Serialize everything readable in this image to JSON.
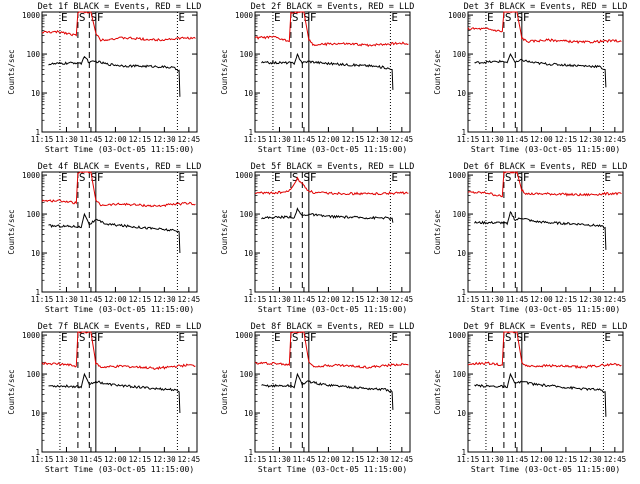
{
  "colors": {
    "events": "#000000",
    "lld": "#e00000",
    "axis": "#000000",
    "background": "#ffffff"
  },
  "shared": {
    "xlabel": "Start Time (03-Oct-05 11:15:00)",
    "ylabel": "Counts/sec",
    "x_ticks": [
      "11:15",
      "11:30",
      "11:45",
      "12:00",
      "12:15",
      "12:30",
      "12:45"
    ],
    "y_ticks": [
      "1",
      "10",
      "100",
      "1000"
    ],
    "markers": [
      "E",
      "S",
      "F",
      "E"
    ]
  },
  "chart_data": [
    {
      "type": "line",
      "title": "Det 1f BLACK = Events, RED = LLD",
      "xlabel": "Start Time (03-Oct-05 11:15:00)",
      "ylabel": "Counts/sec",
      "x_unit": "minutes after 11:15",
      "xlim": [
        0,
        95
      ],
      "ylim": [
        1,
        1200
      ],
      "yscale": "log",
      "series": [
        {
          "name": "LLD",
          "color": "red",
          "x": [
            0,
            12,
            21,
            22,
            24,
            30,
            33,
            36,
            50,
            70,
            90,
            94
          ],
          "y": [
            360,
            370,
            300,
            1200,
            1200,
            1200,
            340,
            230,
            260,
            230,
            260,
            250
          ]
        },
        {
          "name": "Events",
          "color": "black",
          "x": [
            4,
            22,
            24,
            26,
            29,
            33,
            40,
            50,
            70,
            80,
            84,
            84.5
          ],
          "y": [
            55,
            60,
            55,
            90,
            60,
            65,
            55,
            50,
            48,
            45,
            38,
            8
          ]
        }
      ],
      "markers": [
        {
          "label": "E",
          "x": 11,
          "style": "dotted"
        },
        {
          "label": "S",
          "x": 22,
          "style": "dashed"
        },
        {
          "label": "S",
          "x": 29,
          "style": "dashed"
        },
        {
          "label": "F",
          "x": 33,
          "style": "solid"
        },
        {
          "label": "E",
          "x": 83,
          "style": "dotted"
        }
      ]
    },
    {
      "type": "line",
      "title": "Det 2f BLACK = Events, RED = LLD",
      "xlabel": "Start Time (03-Oct-05 11:15:00)",
      "ylabel": "Counts/sec",
      "x_unit": "minutes after 11:15",
      "xlim": [
        0,
        95
      ],
      "ylim": [
        1,
        1200
      ],
      "yscale": "log",
      "series": [
        {
          "name": "LLD",
          "color": "red",
          "x": [
            0,
            12,
            21,
            22,
            24,
            30,
            33,
            36,
            50,
            70,
            90,
            94
          ],
          "y": [
            260,
            270,
            210,
            1200,
            1200,
            1200,
            230,
            170,
            185,
            170,
            190,
            180
          ]
        },
        {
          "name": "Events",
          "color": "black",
          "x": [
            4,
            22,
            24,
            26,
            29,
            33,
            40,
            50,
            70,
            80,
            84,
            84.5
          ],
          "y": [
            60,
            60,
            55,
            95,
            60,
            65,
            60,
            55,
            50,
            45,
            40,
            12
          ]
        }
      ],
      "markers": [
        {
          "label": "E",
          "x": 11,
          "style": "dotted"
        },
        {
          "label": "S",
          "x": 22,
          "style": "dashed"
        },
        {
          "label": "S",
          "x": 29,
          "style": "dashed"
        },
        {
          "label": "F",
          "x": 33,
          "style": "solid"
        },
        {
          "label": "E",
          "x": 83,
          "style": "dotted"
        }
      ]
    },
    {
      "type": "line",
      "title": "Det 3f BLACK = Events, RED = LLD",
      "xlabel": "Start Time (03-Oct-05 11:15:00)",
      "ylabel": "Counts/sec",
      "x_unit": "minutes after 11:15",
      "xlim": [
        0,
        95
      ],
      "ylim": [
        1,
        1200
      ],
      "yscale": "log",
      "series": [
        {
          "name": "LLD",
          "color": "red",
          "x": [
            0,
            12,
            21,
            22,
            24,
            30,
            33,
            36,
            50,
            70,
            90,
            94
          ],
          "y": [
            450,
            440,
            380,
            1200,
            1200,
            1200,
            260,
            210,
            230,
            200,
            220,
            210
          ]
        },
        {
          "name": "Events",
          "color": "black",
          "x": [
            4,
            22,
            24,
            26,
            29,
            33,
            40,
            50,
            70,
            80,
            84,
            84.5
          ],
          "y": [
            60,
            65,
            60,
            100,
            60,
            70,
            60,
            55,
            50,
            48,
            40,
            14
          ]
        }
      ],
      "markers": [
        {
          "label": "E",
          "x": 11,
          "style": "dotted"
        },
        {
          "label": "S",
          "x": 22,
          "style": "dashed"
        },
        {
          "label": "S",
          "x": 29,
          "style": "dashed"
        },
        {
          "label": "F",
          "x": 33,
          "style": "solid"
        },
        {
          "label": "E",
          "x": 83,
          "style": "dotted"
        }
      ]
    },
    {
      "type": "line",
      "title": "Det 4f BLACK = Events, RED = LLD",
      "xlabel": "Start Time (03-Oct-05 11:15:00)",
      "ylabel": "Counts/sec",
      "x_unit": "minutes after 11:15",
      "xlim": [
        0,
        95
      ],
      "ylim": [
        1,
        1200
      ],
      "yscale": "log",
      "series": [
        {
          "name": "LLD",
          "color": "red",
          "x": [
            0,
            12,
            21,
            22,
            24,
            30,
            33,
            36,
            50,
            70,
            90,
            94
          ],
          "y": [
            220,
            220,
            190,
            1200,
            1200,
            1200,
            220,
            170,
            180,
            160,
            190,
            180
          ]
        },
        {
          "name": "Events",
          "color": "black",
          "x": [
            4,
            22,
            24,
            26,
            29,
            33,
            40,
            50,
            70,
            80,
            84,
            84.5
          ],
          "y": [
            50,
            48,
            45,
            100,
            55,
            70,
            55,
            50,
            42,
            38,
            35,
            10
          ]
        }
      ],
      "markers": [
        {
          "label": "E",
          "x": 11,
          "style": "dotted"
        },
        {
          "label": "S",
          "x": 22,
          "style": "dashed"
        },
        {
          "label": "S",
          "x": 29,
          "style": "dashed"
        },
        {
          "label": "F",
          "x": 33,
          "style": "solid"
        },
        {
          "label": "E",
          "x": 83,
          "style": "dotted"
        }
      ]
    },
    {
      "type": "line",
      "title": "Det 5f BLACK = Events, RED = LLD",
      "xlabel": "Start Time (03-Oct-05 11:15:00)",
      "ylabel": "Counts/sec",
      "x_unit": "minutes after 11:15",
      "xlim": [
        0,
        95
      ],
      "ylim": [
        1,
        1200
      ],
      "yscale": "log",
      "series": [
        {
          "name": "LLD",
          "color": "red",
          "x": [
            0,
            12,
            20,
            23,
            26,
            29,
            32,
            36,
            50,
            70,
            90,
            94
          ],
          "y": [
            350,
            350,
            370,
            500,
            800,
            600,
            420,
            350,
            340,
            330,
            350,
            340
          ]
        },
        {
          "name": "Events",
          "color": "black",
          "x": [
            4,
            22,
            24,
            26,
            29,
            33,
            40,
            50,
            70,
            80,
            84,
            84.5
          ],
          "y": [
            80,
            85,
            80,
            130,
            90,
            100,
            90,
            85,
            80,
            80,
            75,
            60
          ]
        }
      ],
      "markers": [
        {
          "label": "E",
          "x": 11,
          "style": "dotted"
        },
        {
          "label": "S",
          "x": 22,
          "style": "dashed"
        },
        {
          "label": "S",
          "x": 29,
          "style": "dashed"
        },
        {
          "label": "F",
          "x": 33,
          "style": "solid"
        },
        {
          "label": "E",
          "x": 83,
          "style": "dotted"
        }
      ]
    },
    {
      "type": "line",
      "title": "Det 6f BLACK = Events, RED = LLD",
      "xlabel": "Start Time (03-Oct-05 11:15:00)",
      "ylabel": "Counts/sec",
      "x_unit": "minutes after 11:15",
      "xlim": [
        0,
        95
      ],
      "ylim": [
        1,
        1200
      ],
      "yscale": "log",
      "series": [
        {
          "name": "LLD",
          "color": "red",
          "x": [
            0,
            12,
            21,
            22,
            24,
            30,
            33,
            36,
            50,
            70,
            90,
            94
          ],
          "y": [
            360,
            350,
            280,
            1200,
            1200,
            1200,
            400,
            330,
            330,
            310,
            340,
            330
          ]
        },
        {
          "name": "Events",
          "color": "black",
          "x": [
            4,
            22,
            24,
            26,
            29,
            33,
            40,
            50,
            70,
            80,
            84,
            84.5
          ],
          "y": [
            60,
            60,
            55,
            110,
            70,
            80,
            65,
            60,
            55,
            50,
            45,
            12
          ]
        }
      ],
      "markers": [
        {
          "label": "E",
          "x": 11,
          "style": "dotted"
        },
        {
          "label": "S",
          "x": 22,
          "style": "dashed"
        },
        {
          "label": "S",
          "x": 29,
          "style": "dashed"
        },
        {
          "label": "F",
          "x": 33,
          "style": "solid"
        },
        {
          "label": "E",
          "x": 83,
          "style": "dotted"
        }
      ]
    },
    {
      "type": "line",
      "title": "Det 7f BLACK = Events, RED = LLD",
      "xlabel": "Start Time (03-Oct-05 11:15:00)",
      "ylabel": "Counts/sec",
      "x_unit": "minutes after 11:15",
      "xlim": [
        0,
        95
      ],
      "ylim": [
        1,
        1200
      ],
      "yscale": "log",
      "series": [
        {
          "name": "LLD",
          "color": "red",
          "x": [
            0,
            12,
            21,
            22,
            24,
            30,
            33,
            36,
            50,
            70,
            90,
            94
          ],
          "y": [
            190,
            180,
            160,
            1200,
            1200,
            1200,
            190,
            150,
            160,
            140,
            170,
            160
          ]
        },
        {
          "name": "Events",
          "color": "black",
          "x": [
            4,
            22,
            24,
            26,
            29,
            33,
            40,
            50,
            70,
            80,
            84,
            84.5
          ],
          "y": [
            50,
            48,
            45,
            100,
            55,
            65,
            55,
            50,
            42,
            40,
            35,
            10
          ]
        }
      ],
      "markers": [
        {
          "label": "E",
          "x": 11,
          "style": "dotted"
        },
        {
          "label": "S",
          "x": 22,
          "style": "dashed"
        },
        {
          "label": "S",
          "x": 29,
          "style": "dashed"
        },
        {
          "label": "F",
          "x": 33,
          "style": "solid"
        },
        {
          "label": "E",
          "x": 83,
          "style": "dotted"
        }
      ]
    },
    {
      "type": "line",
      "title": "Det 8f BLACK = Events, RED = LLD",
      "xlabel": "Start Time (03-Oct-05 11:15:00)",
      "ylabel": "Counts/sec",
      "x_unit": "minutes after 11:15",
      "xlim": [
        0,
        95
      ],
      "ylim": [
        1,
        1200
      ],
      "yscale": "log",
      "series": [
        {
          "name": "LLD",
          "color": "red",
          "x": [
            0,
            12,
            21,
            22,
            24,
            30,
            33,
            36,
            50,
            70,
            90,
            94
          ],
          "y": [
            190,
            190,
            170,
            1200,
            1200,
            1200,
            200,
            160,
            170,
            150,
            180,
            170
          ]
        },
        {
          "name": "Events",
          "color": "black",
          "x": [
            4,
            22,
            24,
            26,
            29,
            33,
            40,
            50,
            70,
            80,
            84,
            84.5
          ],
          "y": [
            50,
            50,
            45,
            100,
            55,
            65,
            55,
            50,
            42,
            40,
            35,
            12
          ]
        }
      ],
      "markers": [
        {
          "label": "E",
          "x": 11,
          "style": "dotted"
        },
        {
          "label": "S",
          "x": 22,
          "style": "dashed"
        },
        {
          "label": "S",
          "x": 29,
          "style": "dashed"
        },
        {
          "label": "F",
          "x": 33,
          "style": "solid"
        },
        {
          "label": "E",
          "x": 83,
          "style": "dotted"
        }
      ]
    },
    {
      "type": "line",
      "title": "Det 9f BLACK = Events, RED = LLD",
      "xlabel": "Start Time (03-Oct-05 11:15:00)",
      "ylabel": "Counts/sec",
      "x_unit": "minutes after 11:15",
      "xlim": [
        0,
        95
      ],
      "ylim": [
        1,
        1200
      ],
      "yscale": "log",
      "series": [
        {
          "name": "LLD",
          "color": "red",
          "x": [
            0,
            12,
            21,
            22,
            24,
            30,
            33,
            36,
            50,
            70,
            90,
            94
          ],
          "y": [
            180,
            190,
            170,
            1200,
            1200,
            1200,
            200,
            160,
            165,
            150,
            180,
            170
          ]
        },
        {
          "name": "Events",
          "color": "black",
          "x": [
            4,
            22,
            24,
            26,
            29,
            33,
            40,
            50,
            70,
            80,
            84,
            84.5
          ],
          "y": [
            50,
            48,
            45,
            100,
            55,
            65,
            55,
            50,
            42,
            40,
            35,
            8
          ]
        }
      ],
      "markers": [
        {
          "label": "E",
          "x": 11,
          "style": "dotted"
        },
        {
          "label": "S",
          "x": 22,
          "style": "dashed"
        },
        {
          "label": "S",
          "x": 29,
          "style": "dashed"
        },
        {
          "label": "F",
          "x": 33,
          "style": "solid"
        },
        {
          "label": "E",
          "x": 83,
          "style": "dotted"
        }
      ]
    }
  ]
}
